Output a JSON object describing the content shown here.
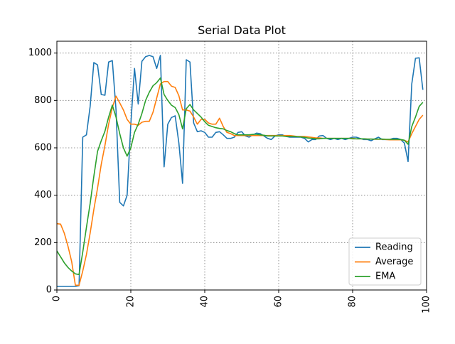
{
  "chart_data": {
    "type": "line",
    "title": "Serial Data Plot",
    "xlabel": "",
    "ylabel": "",
    "xlim": [
      0,
      100
    ],
    "ylim": [
      0,
      1050
    ],
    "xticks": [
      0,
      20,
      40,
      60,
      80,
      100
    ],
    "yticks": [
      0,
      200,
      400,
      600,
      800,
      1000
    ],
    "x_tick_rotation": "vertical",
    "grid": true,
    "grid_style": "dotted",
    "legend_position": "lower right",
    "x": [
      0,
      1,
      2,
      3,
      4,
      5,
      6,
      7,
      8,
      9,
      10,
      11,
      12,
      13,
      14,
      15,
      16,
      17,
      18,
      19,
      20,
      21,
      22,
      23,
      24,
      25,
      26,
      27,
      28,
      29,
      30,
      31,
      32,
      33,
      34,
      35,
      36,
      37,
      38,
      39,
      40,
      41,
      42,
      43,
      44,
      45,
      46,
      47,
      48,
      49,
      50,
      51,
      52,
      53,
      54,
      55,
      56,
      57,
      58,
      59,
      60,
      61,
      62,
      63,
      64,
      65,
      66,
      67,
      68,
      69,
      70,
      71,
      72,
      73,
      74,
      75,
      76,
      77,
      78,
      79,
      80,
      81,
      82,
      83,
      84,
      85,
      86,
      87,
      88,
      89,
      90,
      91,
      92,
      93,
      94,
      95,
      96,
      97,
      98,
      99
    ],
    "series": [
      {
        "name": "Reading",
        "color": "#1f77b4",
        "values": [
          15,
          15,
          15,
          15,
          15,
          15,
          18,
          645,
          655,
          775,
          960,
          950,
          825,
          822,
          962,
          968,
          760,
          370,
          355,
          400,
          700,
          935,
          785,
          965,
          985,
          990,
          985,
          935,
          990,
          520,
          700,
          728,
          735,
          620,
          450,
          972,
          962,
          705,
          668,
          672,
          665,
          645,
          645,
          665,
          668,
          655,
          640,
          640,
          645,
          665,
          668,
          650,
          645,
          655,
          662,
          660,
          650,
          640,
          635,
          650,
          655,
          655,
          648,
          645,
          645,
          645,
          645,
          640,
          625,
          635,
          635,
          650,
          652,
          640,
          635,
          640,
          635,
          640,
          635,
          640,
          645,
          645,
          640,
          635,
          635,
          630,
          638,
          645,
          635,
          635,
          635,
          640,
          640,
          635,
          620,
          542,
          870,
          978,
          980,
          845
        ]
      },
      {
        "name": "Average",
        "color": "#ff7f0e",
        "values": [
          280,
          278,
          240,
          185,
          120,
          20,
          20,
          80,
          150,
          240,
          340,
          430,
          530,
          610,
          700,
          770,
          818,
          790,
          760,
          720,
          700,
          700,
          695,
          708,
          712,
          712,
          750,
          810,
          870,
          880,
          880,
          860,
          855,
          820,
          760,
          760,
          755,
          730,
          700,
          720,
          720,
          705,
          700,
          700,
          725,
          690,
          665,
          660,
          652,
          652,
          652,
          652,
          652,
          652,
          652,
          652,
          652,
          652,
          652,
          652,
          652,
          652,
          652,
          652,
          650,
          648,
          648,
          648,
          646,
          644,
          642,
          642,
          640,
          640,
          640,
          640,
          640,
          640,
          640,
          640,
          640,
          638,
          638,
          638,
          637,
          637,
          636,
          636,
          636,
          635,
          634,
          634,
          634,
          634,
          632,
          625,
          660,
          690,
          720,
          738
        ]
      },
      {
        "name": "EMA",
        "color": "#2ca02c",
        "values": [
          165,
          140,
          115,
          95,
          80,
          68,
          65,
          160,
          265,
          365,
          480,
          585,
          630,
          670,
          730,
          780,
          730,
          660,
          600,
          565,
          600,
          665,
          700,
          745,
          800,
          835,
          862,
          875,
          895,
          825,
          800,
          780,
          770,
          740,
          680,
          765,
          783,
          760,
          745,
          730,
          710,
          695,
          690,
          685,
          682,
          680,
          673,
          668,
          660,
          655,
          655,
          655,
          655,
          657,
          657,
          655,
          653,
          650,
          650,
          650,
          650,
          650,
          648,
          648,
          648,
          647,
          646,
          644,
          641,
          640,
          638,
          638,
          640,
          640,
          640,
          640,
          640,
          640,
          640,
          640,
          638,
          638,
          638,
          638,
          637,
          637,
          637,
          637,
          637,
          636,
          636,
          636,
          636,
          635,
          632,
          615,
          690,
          730,
          775,
          792
        ]
      }
    ]
  }
}
